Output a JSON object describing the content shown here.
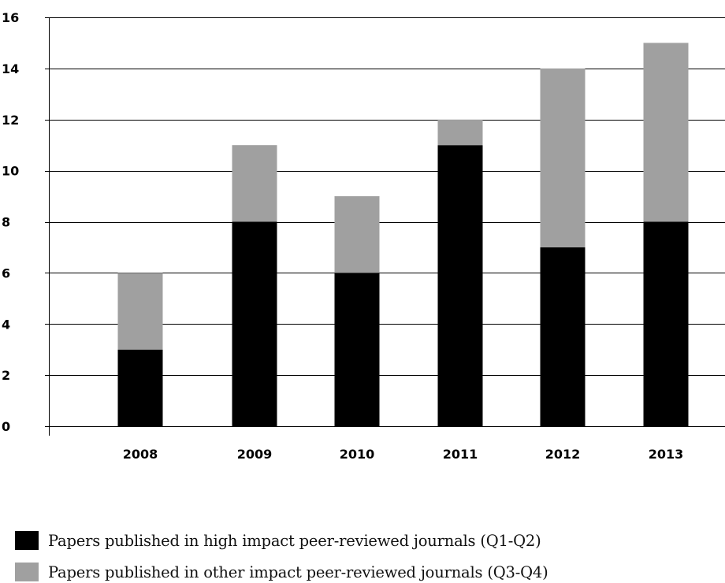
{
  "chart_data": {
    "type": "bar",
    "stacked": true,
    "categories": [
      "2008",
      "2009",
      "2010",
      "2011",
      "2012",
      "2013"
    ],
    "series": [
      {
        "name": "Papers published in high impact peer-reviewed journals (Q1-Q2)",
        "color": "#000000",
        "values": [
          3,
          8,
          6,
          11,
          7,
          8
        ]
      },
      {
        "name": "Papers published in other impact peer-reviewed journals (Q3-Q4)",
        "color": "#a0a0a0",
        "values": [
          3,
          3,
          3,
          1,
          7,
          7
        ]
      }
    ],
    "ylim": [
      0,
      16
    ],
    "yticks": [
      "0",
      "2",
      "4",
      "6",
      "8",
      "10",
      "12",
      "14",
      "16"
    ],
    "grid": true,
    "legend_position": "bottom"
  }
}
